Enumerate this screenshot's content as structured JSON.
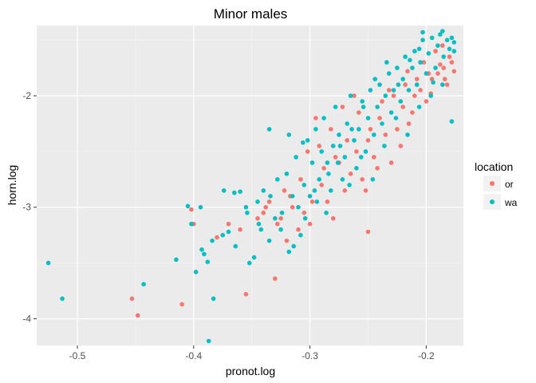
{
  "chart_data": {
    "type": "scatter",
    "title": "Minor males",
    "xlabel": "pronot.log",
    "ylabel": "horn.log",
    "xlim": [
      -0.535,
      -0.168
    ],
    "ylim": [
      -4.24,
      -1.37
    ],
    "xticks": [
      -0.5,
      -0.4,
      -0.3,
      -0.2
    ],
    "xtick_labels": [
      "-0.5",
      "-0.4",
      "-0.3",
      "-0.2"
    ],
    "yticks": [
      -4,
      -3,
      -2
    ],
    "ytick_labels": [
      "-4",
      "-3",
      "-2"
    ],
    "grid": true,
    "legend": {
      "title": "location",
      "position": "right"
    },
    "series": [
      {
        "name": "or",
        "color": "#f8766d",
        "points": [
          [
            -0.453,
            -3.82
          ],
          [
            -0.448,
            -3.97
          ],
          [
            -0.41,
            -3.87
          ],
          [
            -0.402,
            -3.02
          ],
          [
            -0.4,
            -3.15
          ],
          [
            -0.38,
            -3.27
          ],
          [
            -0.355,
            -3.78
          ],
          [
            -0.34,
            -3.05
          ],
          [
            -0.338,
            -3.0
          ],
          [
            -0.33,
            -3.64
          ],
          [
            -0.325,
            -3.1
          ],
          [
            -0.32,
            -3.3
          ],
          [
            -0.317,
            -2.9
          ],
          [
            -0.31,
            -3.2
          ],
          [
            -0.305,
            -3.05
          ],
          [
            -0.3,
            -3.15
          ],
          [
            -0.298,
            -2.95
          ],
          [
            -0.29,
            -2.8
          ],
          [
            -0.285,
            -2.95
          ],
          [
            -0.28,
            -3.1
          ],
          [
            -0.275,
            -2.6
          ],
          [
            -0.27,
            -2.85
          ],
          [
            -0.265,
            -2.7
          ],
          [
            -0.26,
            -2.5
          ],
          [
            -0.255,
            -2.75
          ],
          [
            -0.25,
            -3.22
          ],
          [
            -0.25,
            -2.4
          ],
          [
            -0.245,
            -2.55
          ],
          [
            -0.24,
            -2.2
          ],
          [
            -0.235,
            -2.35
          ],
          [
            -0.23,
            -2.6
          ],
          [
            -0.225,
            -2.3
          ],
          [
            -0.22,
            -2.1
          ],
          [
            -0.215,
            -2.25
          ],
          [
            -0.21,
            -2.0
          ],
          [
            -0.205,
            -1.95
          ],
          [
            -0.2,
            -2.05
          ],
          [
            -0.195,
            -1.85
          ],
          [
            -0.19,
            -1.8
          ],
          [
            -0.185,
            -1.75
          ],
          [
            -0.18,
            -1.65
          ],
          [
            -0.178,
            -1.7
          ],
          [
            -0.182,
            -1.9
          ],
          [
            -0.188,
            -1.72
          ],
          [
            -0.192,
            -1.6
          ],
          [
            -0.198,
            -1.8
          ],
          [
            -0.208,
            -1.85
          ],
          [
            -0.212,
            -2.15
          ],
          [
            -0.218,
            -1.9
          ],
          [
            -0.228,
            -2.0
          ],
          [
            -0.238,
            -2.05
          ],
          [
            -0.248,
            -2.3
          ],
          [
            -0.258,
            -2.15
          ],
          [
            -0.268,
            -2.4
          ],
          [
            -0.278,
            -2.55
          ],
          [
            -0.288,
            -2.65
          ],
          [
            -0.295,
            -2.2
          ],
          [
            -0.302,
            -2.5
          ],
          [
            -0.308,
            -2.75
          ],
          [
            -0.315,
            -3.0
          ],
          [
            -0.322,
            -2.85
          ],
          [
            -0.328,
            -3.15
          ],
          [
            -0.335,
            -2.95
          ],
          [
            -0.345,
            -3.1
          ],
          [
            -0.36,
            -3.2
          ],
          [
            -0.37,
            -3.15
          ],
          [
            -0.262,
            -2.0
          ],
          [
            -0.272,
            -2.1
          ],
          [
            -0.282,
            -2.3
          ],
          [
            -0.292,
            -2.45
          ],
          [
            -0.232,
            -1.95
          ],
          [
            -0.222,
            -2.45
          ],
          [
            -0.242,
            -2.65
          ],
          [
            -0.252,
            -2.85
          ],
          [
            -0.202,
            -1.7
          ],
          [
            -0.196,
            -1.98
          ],
          [
            -0.186,
            -1.55
          ],
          [
            -0.184,
            -1.85
          ],
          [
            -0.176,
            -1.78
          ],
          [
            -0.216,
            -1.78
          ]
        ]
      },
      {
        "name": "wa",
        "color": "#00bfc4",
        "points": [
          [
            -0.525,
            -3.5
          ],
          [
            -0.513,
            -3.82
          ],
          [
            -0.443,
            -3.69
          ],
          [
            -0.415,
            -3.47
          ],
          [
            -0.405,
            -2.99
          ],
          [
            -0.402,
            -3.15
          ],
          [
            -0.398,
            -3.58
          ],
          [
            -0.393,
            -3.38
          ],
          [
            -0.391,
            -3.42
          ],
          [
            -0.388,
            -3.49
          ],
          [
            -0.387,
            -4.2
          ],
          [
            -0.383,
            -3.82
          ],
          [
            -0.375,
            -3.25
          ],
          [
            -0.37,
            -3.22
          ],
          [
            -0.365,
            -2.87
          ],
          [
            -0.36,
            -2.86
          ],
          [
            -0.355,
            -3.0
          ],
          [
            -0.352,
            -3.5
          ],
          [
            -0.348,
            -3.45
          ],
          [
            -0.345,
            -2.95
          ],
          [
            -0.342,
            -3.2
          ],
          [
            -0.34,
            -2.85
          ],
          [
            -0.335,
            -3.3
          ],
          [
            -0.33,
            -3.1
          ],
          [
            -0.328,
            -2.75
          ],
          [
            -0.325,
            -3.2
          ],
          [
            -0.32,
            -2.7
          ],
          [
            -0.318,
            -3.4
          ],
          [
            -0.315,
            -2.9
          ],
          [
            -0.312,
            -2.55
          ],
          [
            -0.31,
            -3.0
          ],
          [
            -0.308,
            -3.25
          ],
          [
            -0.305,
            -2.8
          ],
          [
            -0.302,
            -2.4
          ],
          [
            -0.3,
            -2.9
          ],
          [
            -0.298,
            -2.6
          ],
          [
            -0.295,
            -2.3
          ],
          [
            -0.292,
            -2.75
          ],
          [
            -0.29,
            -2.5
          ],
          [
            -0.288,
            -2.2
          ],
          [
            -0.285,
            -2.6
          ],
          [
            -0.282,
            -2.85
          ],
          [
            -0.28,
            -2.45
          ],
          [
            -0.278,
            -2.1
          ],
          [
            -0.275,
            -2.35
          ],
          [
            -0.272,
            -2.75
          ],
          [
            -0.27,
            -2.55
          ],
          [
            -0.268,
            -2.25
          ],
          [
            -0.265,
            -2.0
          ],
          [
            -0.262,
            -2.4
          ],
          [
            -0.26,
            -2.65
          ],
          [
            -0.258,
            -2.3
          ],
          [
            -0.255,
            -2.05
          ],
          [
            -0.252,
            -2.5
          ],
          [
            -0.25,
            -2.2
          ],
          [
            -0.248,
            -1.95
          ],
          [
            -0.245,
            -2.35
          ],
          [
            -0.242,
            -2.1
          ],
          [
            -0.24,
            -1.9
          ],
          [
            -0.238,
            -2.25
          ],
          [
            -0.235,
            -2.0
          ],
          [
            -0.232,
            -1.8
          ],
          [
            -0.23,
            -2.15
          ],
          [
            -0.228,
            -1.95
          ],
          [
            -0.225,
            -1.75
          ],
          [
            -0.222,
            -2.05
          ],
          [
            -0.22,
            -1.85
          ],
          [
            -0.218,
            -1.65
          ],
          [
            -0.215,
            -1.95
          ],
          [
            -0.212,
            -1.75
          ],
          [
            -0.21,
            -1.6
          ],
          [
            -0.208,
            -1.9
          ],
          [
            -0.205,
            -1.7
          ],
          [
            -0.203,
            -1.5
          ],
          [
            -0.2,
            -1.8
          ],
          [
            -0.198,
            -1.62
          ],
          [
            -0.195,
            -1.48
          ],
          [
            -0.192,
            -1.75
          ],
          [
            -0.19,
            -1.55
          ],
          [
            -0.188,
            -1.45
          ],
          [
            -0.185,
            -1.65
          ],
          [
            -0.182,
            -1.5
          ],
          [
            -0.18,
            -1.58
          ],
          [
            -0.178,
            -1.48
          ],
          [
            -0.176,
            -1.52
          ],
          [
            -0.178,
            -2.23
          ],
          [
            -0.203,
            -1.43
          ],
          [
            -0.186,
            -1.42
          ],
          [
            -0.194,
            -1.88
          ],
          [
            -0.206,
            -1.58
          ],
          [
            -0.214,
            -1.68
          ],
          [
            -0.224,
            -1.9
          ],
          [
            -0.234,
            -1.7
          ],
          [
            -0.244,
            -1.85
          ],
          [
            -0.254,
            -2.1
          ],
          [
            -0.264,
            -2.3
          ],
          [
            -0.274,
            -2.45
          ],
          [
            -0.284,
            -2.7
          ],
          [
            -0.294,
            -2.95
          ],
          [
            -0.304,
            -3.1
          ],
          [
            -0.314,
            -3.35
          ],
          [
            -0.324,
            -3.05
          ],
          [
            -0.334,
            -2.9
          ],
          [
            -0.344,
            -3.15
          ],
          [
            -0.354,
            -3.05
          ],
          [
            -0.364,
            -3.35
          ],
          [
            -0.374,
            -2.85
          ],
          [
            -0.384,
            -3.3
          ],
          [
            -0.394,
            -3.0
          ],
          [
            -0.335,
            -2.3
          ],
          [
            -0.318,
            -2.35
          ],
          [
            -0.306,
            -2.42
          ],
          [
            -0.296,
            -2.85
          ],
          [
            -0.286,
            -3.05
          ],
          [
            -0.276,
            -2.6
          ],
          [
            -0.266,
            -2.8
          ],
          [
            -0.256,
            -2.55
          ],
          [
            -0.246,
            -2.75
          ],
          [
            -0.236,
            -2.45
          ],
          [
            -0.226,
            -2.2
          ],
          [
            -0.216,
            -2.35
          ],
          [
            -0.206,
            -2.1
          ],
          [
            -0.196,
            -2.0
          ],
          [
            -0.186,
            -1.9
          ],
          [
            -0.176,
            -1.6
          ]
        ]
      }
    ]
  }
}
